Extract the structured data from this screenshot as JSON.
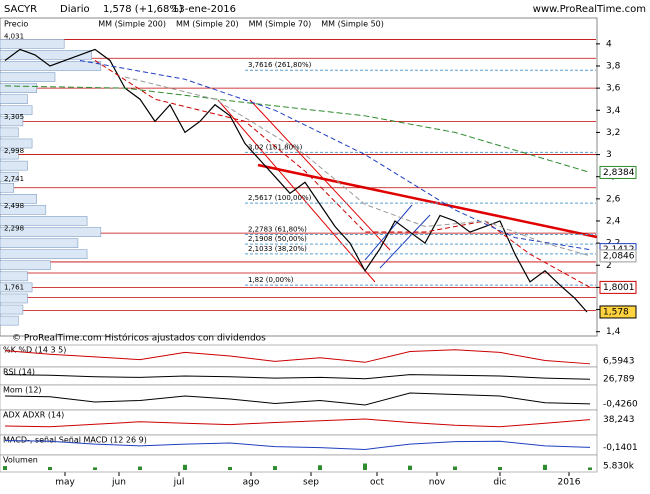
{
  "chart_data": {
    "type": "line",
    "title": "SACYR",
    "period": "Diario",
    "last_quote": "1,578 (+1,68%)",
    "date": "13-ene-2016",
    "site": "www.ProRealTime.com",
    "footer": "© ProRealTime.com   Históricos ajustados con dividendos",
    "xlim": [
      0,
      197
    ],
    "xticks": [
      {
        "value": 20,
        "label": "may"
      },
      {
        "value": 38,
        "label": "jun"
      },
      {
        "value": 58,
        "label": "jul"
      },
      {
        "value": 82,
        "label": "ago"
      },
      {
        "value": 102,
        "label": "sep"
      },
      {
        "value": 124,
        "label": "oct"
      },
      {
        "value": 144,
        "label": "nov"
      },
      {
        "value": 165,
        "label": "dic"
      },
      {
        "value": 188,
        "label": "2016"
      }
    ],
    "ylim": [
      1.37,
      4.08
    ],
    "yticks": [
      {
        "value": 4,
        "label": "4"
      },
      {
        "value": 3.8,
        "label": "3,8"
      },
      {
        "value": 3.6,
        "label": "3,6"
      },
      {
        "value": 3.4,
        "label": "3,4"
      },
      {
        "value": 3.2,
        "label": "3,2"
      },
      {
        "value": 3,
        "label": "3"
      },
      {
        "value": 2.8,
        "label": "2,8"
      },
      {
        "value": 2.6,
        "label": "2,6"
      },
      {
        "value": 2.4,
        "label": "2,4"
      },
      {
        "value": 2.2,
        "label": "2,2"
      },
      {
        "value": 2,
        "label": "2"
      },
      {
        "value": 1.8,
        "label": "1,8"
      },
      {
        "value": 1.6,
        "label": "1,6"
      },
      {
        "value": 1.4,
        "label": "1,4"
      }
    ],
    "series": [
      {
        "name": "Precio",
        "color": "#000000",
        "x": [
          0,
          5,
          10,
          15,
          20,
          25,
          30,
          35,
          40,
          45,
          50,
          55,
          60,
          65,
          70,
          75,
          80,
          85,
          90,
          95,
          100,
          105,
          110,
          115,
          120,
          125,
          130,
          135,
          140,
          145,
          150,
          155,
          160,
          165,
          170,
          175,
          180,
          185,
          190,
          194
        ],
        "values": [
          3.85,
          3.95,
          3.9,
          3.8,
          3.85,
          3.9,
          3.95,
          3.85,
          3.6,
          3.5,
          3.3,
          3.45,
          3.2,
          3.3,
          3.45,
          3.35,
          3.1,
          2.95,
          2.8,
          2.65,
          2.75,
          2.55,
          2.35,
          2.2,
          1.95,
          2.15,
          2.4,
          2.3,
          2.2,
          2.45,
          2.4,
          2.3,
          2.35,
          2.4,
          2.1,
          1.85,
          1.95,
          1.82,
          1.7,
          1.578
        ],
        "value_labels": [
          null,
          null,
          null,
          null,
          null,
          null,
          null,
          null,
          null,
          null,
          null,
          null,
          null,
          null,
          null,
          null,
          null,
          null,
          null,
          null,
          null,
          null,
          null,
          null,
          null,
          null,
          null,
          null,
          null,
          null,
          null,
          null,
          null,
          null,
          null,
          null,
          null,
          null,
          null,
          "1,578"
        ]
      },
      {
        "name": "MM (Simple 200)",
        "color": "#2e8b2e",
        "x": [
          0,
          40,
          80,
          120,
          150,
          175,
          195
        ],
        "values": [
          3.62,
          3.6,
          3.47,
          3.35,
          3.2,
          3.0,
          2.8384
        ],
        "value_labels": [
          null,
          null,
          null,
          null,
          null,
          null,
          "2,8384"
        ]
      },
      {
        "name": "MM (Simple 20)",
        "color": "#cc0000",
        "x": [
          30,
          50,
          80,
          100,
          120,
          140,
          160,
          175,
          195
        ],
        "values": [
          3.85,
          3.5,
          3.3,
          2.85,
          2.3,
          2.3,
          2.4,
          2.1,
          1.8001
        ],
        "value_labels": [
          null,
          null,
          null,
          null,
          null,
          null,
          null,
          null,
          "1,8001"
        ]
      },
      {
        "name": "MM (Simple 70)",
        "color": "#1f3fbf",
        "x": [
          25,
          60,
          90,
          120,
          150,
          170,
          195
        ],
        "values": [
          3.85,
          3.68,
          3.4,
          3.0,
          2.5,
          2.25,
          2.1412
        ],
        "value_labels": [
          null,
          null,
          null,
          null,
          null,
          null,
          "2,1412"
        ]
      },
      {
        "name": "MM (Simple 50)",
        "color": "#999999",
        "x": [
          40,
          70,
          100,
          120,
          140,
          160,
          180,
          195
        ],
        "values": [
          3.7,
          3.5,
          3.0,
          2.55,
          2.35,
          2.4,
          2.2,
          2.0846
        ],
        "value_labels": [
          null,
          null,
          null,
          null,
          null,
          null,
          null,
          "2,0846"
        ]
      }
    ],
    "levels": [
      4.04,
      3.87,
      3.6,
      3.3,
      3.0,
      2.7,
      2.29,
      2.03,
      1.93,
      1.8,
      1.71,
      1.59
    ],
    "fib_levels": [
      {
        "value": 3.7616,
        "label": "3,7616 (261,80%)"
      },
      {
        "value": 3.02,
        "label": "3,02 (161,80%)"
      },
      {
        "value": 2.5617,
        "label": "2,5617 (100,00%)"
      },
      {
        "value": 2.2783,
        "label": "2,2783 (61,80%)"
      },
      {
        "value": 2.1908,
        "label": "2,1908 (50,00%)"
      },
      {
        "value": 2.1033,
        "label": "2,1033 (38,20%)"
      },
      {
        "value": 1.82,
        "label": "1,82 (0,00%)"
      }
    ],
    "profile": {
      "xlim": [
        0,
        120
      ],
      "prices": [
        4.0,
        3.9,
        3.8,
        3.7,
        3.6,
        3.5,
        3.4,
        3.3,
        3.2,
        3.1,
        3.0,
        2.9,
        2.8,
        2.7,
        2.6,
        2.5,
        2.4,
        2.3,
        2.2,
        2.1,
        2.0,
        1.9,
        1.8,
        1.7,
        1.6,
        1.5
      ],
      "values": [
        70,
        100,
        110,
        60,
        40,
        30,
        35,
        25,
        20,
        35,
        20,
        30,
        20,
        15,
        40,
        50,
        95,
        110,
        85,
        95,
        55,
        30,
        35,
        30,
        25,
        20
      ],
      "labels": [
        {
          "value": 4.031,
          "label": "4,031"
        },
        {
          "value": 3.305,
          "label": "3,305"
        },
        {
          "value": 2.998,
          "label": "2,998"
        },
        {
          "value": 2.741,
          "label": "2,741"
        },
        {
          "value": 2.498,
          "label": "2,498"
        },
        {
          "value": 2.298,
          "label": "2,298"
        },
        {
          "value": 1.761,
          "label": "1,761"
        }
      ]
    },
    "panels": [
      {
        "name": "%K  %D (14 3 5)",
        "color": "#cc0000",
        "ylim": [
          0,
          100
        ],
        "x": [
          0,
          15,
          30,
          45,
          60,
          75,
          90,
          105,
          120,
          135,
          150,
          165,
          180,
          195
        ],
        "values": [
          80,
          60,
          45,
          30,
          70,
          50,
          20,
          40,
          15,
          75,
          85,
          70,
          25,
          6.5943
        ],
        "value_labels": [
          null,
          null,
          null,
          null,
          null,
          null,
          null,
          null,
          null,
          null,
          null,
          null,
          null,
          "6,5943"
        ]
      },
      {
        "name": "RSI (14)",
        "color": "#000000",
        "ylim": [
          0,
          100
        ],
        "x": [
          0,
          15,
          30,
          45,
          60,
          75,
          90,
          105,
          120,
          135,
          150,
          165,
          180,
          195
        ],
        "values": [
          60,
          55,
          45,
          40,
          50,
          45,
          35,
          40,
          30,
          60,
          55,
          50,
          35,
          26.789
        ],
        "value_labels": [
          null,
          null,
          null,
          null,
          null,
          null,
          null,
          null,
          null,
          null,
          null,
          null,
          null,
          "26,789"
        ]
      },
      {
        "name": "Mom (12)",
        "color": "#000000",
        "ylim": [
          -0.7,
          0.7
        ],
        "x": [
          0,
          15,
          30,
          45,
          60,
          75,
          90,
          105,
          120,
          135,
          150,
          165,
          180,
          195
        ],
        "values": [
          0.1,
          0.05,
          -0.3,
          -0.2,
          0.1,
          -0.1,
          -0.4,
          -0.2,
          -0.5,
          0.3,
          0.2,
          0.1,
          -0.35,
          -0.426
        ],
        "value_labels": [
          null,
          null,
          null,
          null,
          null,
          null,
          null,
          null,
          null,
          null,
          null,
          null,
          null,
          "-0,4260"
        ]
      },
      {
        "name": "ADX  ADXR (14)",
        "color": "#cc0000",
        "ylim": [
          0,
          60
        ],
        "x": [
          0,
          15,
          30,
          45,
          60,
          75,
          90,
          105,
          120,
          135,
          150,
          165,
          180,
          195
        ],
        "values": [
          20,
          18,
          25,
          32,
          28,
          24,
          30,
          35,
          40,
          30,
          22,
          18,
          28,
          38.243
        ],
        "value_labels": [
          null,
          null,
          null,
          null,
          null,
          null,
          null,
          null,
          null,
          null,
          null,
          null,
          null,
          "38,243"
        ]
      },
      {
        "name": "MACD-, señal  Señal  MACD (12 26 9)",
        "color": "#1f3fbf",
        "ylim": [
          -0.3,
          0.15
        ],
        "x": [
          0,
          15,
          30,
          45,
          60,
          75,
          90,
          105,
          120,
          135,
          150,
          165,
          180,
          195
        ],
        "values": [
          0.05,
          0.03,
          -0.05,
          -0.1,
          -0.05,
          -0.02,
          -0.12,
          -0.15,
          -0.2,
          -0.05,
          0.02,
          0.03,
          -0.1,
          -0.1401
        ],
        "value_labels": [
          null,
          null,
          null,
          null,
          null,
          null,
          null,
          null,
          null,
          null,
          null,
          null,
          null,
          "-0,1401"
        ]
      },
      {
        "name": "Volumen",
        "color": "#2e8b2e",
        "ylim": [
          0,
          30000
        ],
        "x": [
          0,
          15,
          30,
          45,
          60,
          75,
          90,
          105,
          120,
          135,
          150,
          165,
          180,
          195
        ],
        "values": [
          9000,
          7000,
          6000,
          8000,
          12000,
          7000,
          9000,
          11000,
          15000,
          10000,
          8000,
          7000,
          12000,
          5830
        ],
        "value_labels": [
          null,
          null,
          null,
          null,
          null,
          null,
          null,
          null,
          null,
          null,
          null,
          null,
          null,
          "5.830k"
        ]
      }
    ]
  }
}
